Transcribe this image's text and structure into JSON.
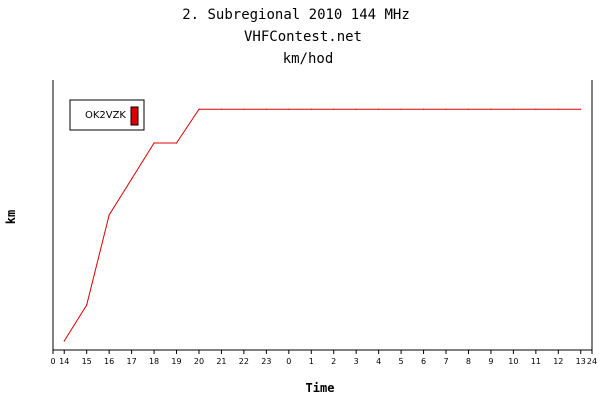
{
  "chart_data": {
    "type": "line",
    "title": "2. Subregional 2010 144 MHz",
    "subtitle": "VHFContest.net",
    "subtitle2": "km/hod",
    "xlabel": "Time",
    "ylabel": "km",
    "x_tick_labels": [
      "0",
      "14",
      "15",
      "16",
      "17",
      "18",
      "19",
      "20",
      "21",
      "22",
      "23",
      "0",
      "1",
      "2",
      "3",
      "4",
      "5",
      "6",
      "7",
      "8",
      "9",
      "10",
      "11",
      "12",
      "13",
      "24"
    ],
    "xlim": [
      0,
      24
    ],
    "grid": false,
    "legend_position": "top-left",
    "colors": {
      "series": "#dd0000",
      "axis": "#000000",
      "background": "#ffffff"
    },
    "series": [
      {
        "name": "OK2VZK",
        "x": [
          "14:00",
          "15:00",
          "16:00",
          "17:00",
          "18:00",
          "19:00",
          "20:00",
          "21:00",
          "22:00",
          "23:00",
          "00:00",
          "01:00",
          "02:00",
          "03:00",
          "04:00",
          "05:00",
          "06:00",
          "07:00",
          "08:00",
          "09:00",
          "10:00",
          "11:00",
          "12:00",
          "13:00"
        ],
        "values": [
          4,
          20,
          60,
          76,
          92,
          92,
          107,
          107,
          107,
          107,
          107,
          107,
          107,
          107,
          107,
          107,
          107,
          107,
          107,
          107,
          107,
          107,
          107,
          107
        ]
      }
    ]
  }
}
